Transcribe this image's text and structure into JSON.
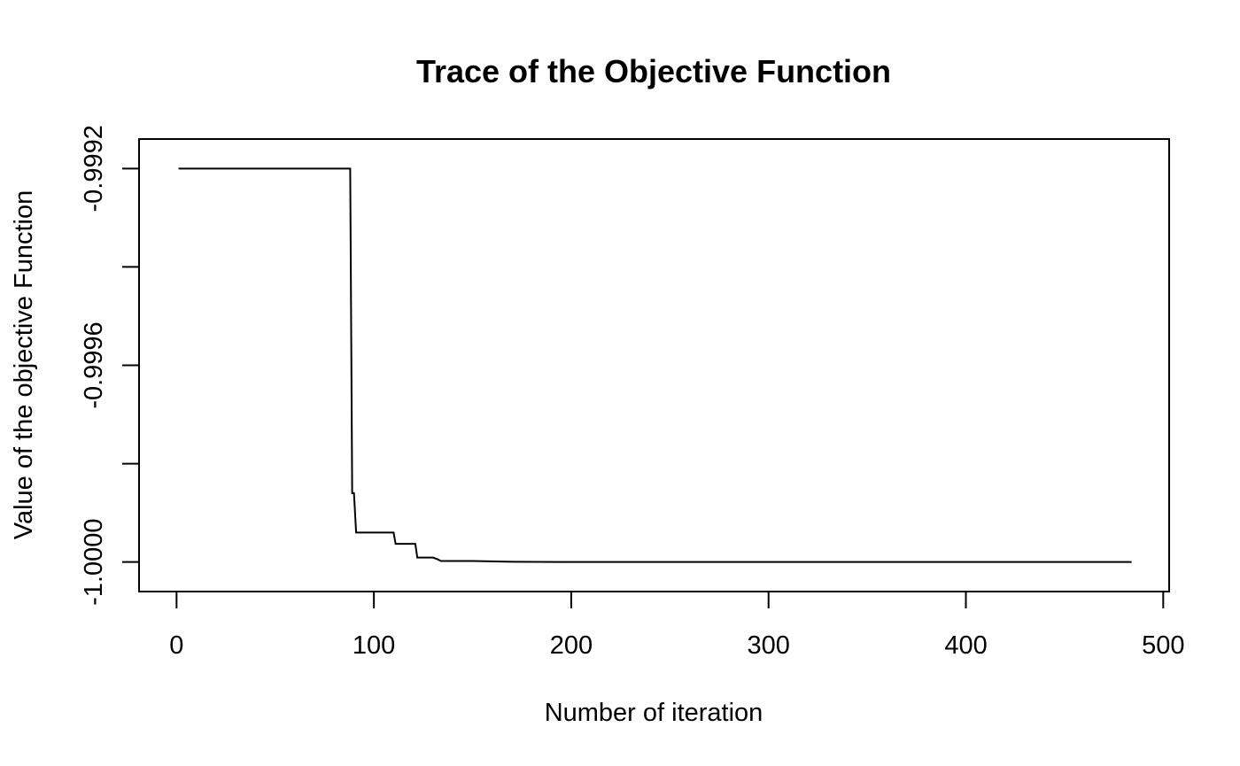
{
  "chart_data": {
    "type": "line",
    "title": "Trace of the Objective Function",
    "xlabel": "Number of iteration",
    "ylabel": "Value of the objective Function",
    "xlim": [
      -19,
      503
    ],
    "ylim": [
      -1.00006,
      -0.99914
    ],
    "x_ticks": [
      0,
      100,
      200,
      300,
      400,
      500
    ],
    "x_tick_labels": [
      "0",
      "100",
      "200",
      "300",
      "400",
      "500"
    ],
    "y_ticks": [
      -1.0,
      -0.9998,
      -0.9996,
      -0.9994,
      -0.9992
    ],
    "y_tick_labels": [
      "-1.0000",
      "",
      "-0.9996",
      "",
      "-0.9992"
    ],
    "grid": false,
    "legend": "none",
    "line_color": "#000000",
    "series": [
      {
        "x": [
          1,
          88,
          89,
          89.9,
          91,
          110,
          111,
          121,
          122,
          130,
          132,
          134,
          150,
          170,
          200,
          484
        ],
        "y": [
          -0.9992,
          -0.9992,
          -0.99986,
          -0.99986,
          -0.99994,
          -0.99994,
          -0.999963,
          -0.999963,
          -0.999991,
          -0.999991,
          -0.999994,
          -0.999998,
          -0.999998,
          -0.9999995,
          -1.0,
          -1.0
        ]
      }
    ]
  }
}
